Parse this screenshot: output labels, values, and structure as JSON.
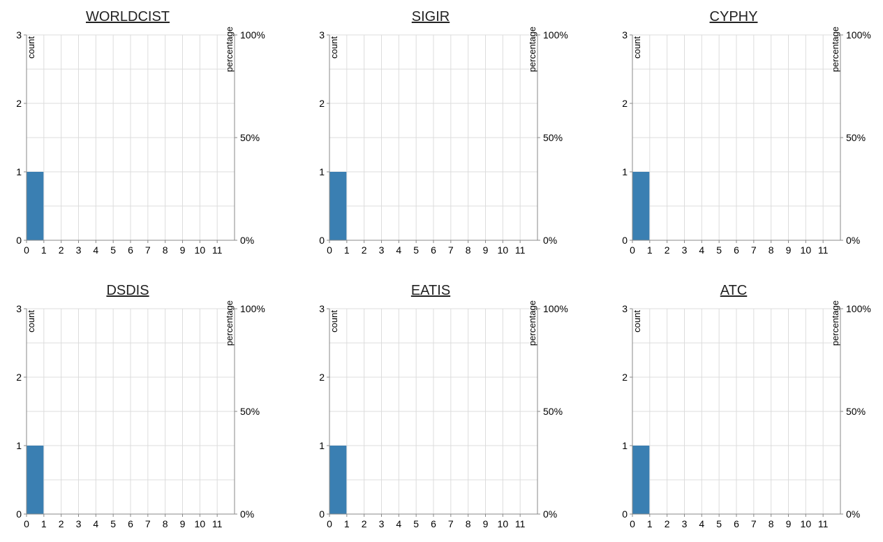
{
  "chart_data": [
    {
      "type": "bar",
      "title": "WORLDCIST",
      "ylabel": "count",
      "y2label": "percentage",
      "x_ticks": [
        "0",
        "1",
        "2",
        "3",
        "4",
        "5",
        "6",
        "7",
        "8",
        "9",
        "10",
        "11"
      ],
      "y_ticks": [
        "0",
        "1",
        "2",
        "3"
      ],
      "y2_ticks": [
        "0%",
        "50%",
        "100%"
      ],
      "xlim": [
        0,
        12
      ],
      "ylim": [
        0,
        3
      ],
      "grid": true,
      "bars": [
        {
          "x_start": 0,
          "x_end": 1,
          "value": 1
        }
      ],
      "bar_color": "#3a7fb2"
    },
    {
      "type": "bar",
      "title": "SIGIR",
      "ylabel": "count",
      "y2label": "percentage",
      "x_ticks": [
        "0",
        "1",
        "2",
        "3",
        "4",
        "5",
        "6",
        "7",
        "8",
        "9",
        "10",
        "11"
      ],
      "y_ticks": [
        "0",
        "1",
        "2",
        "3"
      ],
      "y2_ticks": [
        "0%",
        "50%",
        "100%"
      ],
      "xlim": [
        0,
        12
      ],
      "ylim": [
        0,
        3
      ],
      "grid": true,
      "bars": [
        {
          "x_start": 0,
          "x_end": 1,
          "value": 1
        }
      ],
      "bar_color": "#3a7fb2"
    },
    {
      "type": "bar",
      "title": "CYPHY",
      "ylabel": "count",
      "y2label": "percentage",
      "x_ticks": [
        "0",
        "1",
        "2",
        "3",
        "4",
        "5",
        "6",
        "7",
        "8",
        "9",
        "10",
        "11"
      ],
      "y_ticks": [
        "0",
        "1",
        "2",
        "3"
      ],
      "y2_ticks": [
        "0%",
        "50%",
        "100%"
      ],
      "xlim": [
        0,
        12
      ],
      "ylim": [
        0,
        3
      ],
      "grid": true,
      "bars": [
        {
          "x_start": 0,
          "x_end": 1,
          "value": 1
        }
      ],
      "bar_color": "#3a7fb2"
    },
    {
      "type": "bar",
      "title": "DSDIS",
      "ylabel": "count",
      "y2label": "percentage",
      "x_ticks": [
        "0",
        "1",
        "2",
        "3",
        "4",
        "5",
        "6",
        "7",
        "8",
        "9",
        "10",
        "11"
      ],
      "y_ticks": [
        "0",
        "1",
        "2",
        "3"
      ],
      "y2_ticks": [
        "0%",
        "50%",
        "100%"
      ],
      "xlim": [
        0,
        12
      ],
      "ylim": [
        0,
        3
      ],
      "grid": true,
      "bars": [
        {
          "x_start": 0,
          "x_end": 1,
          "value": 1
        }
      ],
      "bar_color": "#3a7fb2"
    },
    {
      "type": "bar",
      "title": "EATIS",
      "ylabel": "count",
      "y2label": "percentage",
      "x_ticks": [
        "0",
        "1",
        "2",
        "3",
        "4",
        "5",
        "6",
        "7",
        "8",
        "9",
        "10",
        "11"
      ],
      "y_ticks": [
        "0",
        "1",
        "2",
        "3"
      ],
      "y2_ticks": [
        "0%",
        "50%",
        "100%"
      ],
      "xlim": [
        0,
        12
      ],
      "ylim": [
        0,
        3
      ],
      "grid": true,
      "bars": [
        {
          "x_start": 0,
          "x_end": 1,
          "value": 1
        }
      ],
      "bar_color": "#3a7fb2"
    },
    {
      "type": "bar",
      "title": "ATC",
      "ylabel": "count",
      "y2label": "percentage",
      "x_ticks": [
        "0",
        "1",
        "2",
        "3",
        "4",
        "5",
        "6",
        "7",
        "8",
        "9",
        "10",
        "11"
      ],
      "y_ticks": [
        "0",
        "1",
        "2",
        "3"
      ],
      "y2_ticks": [
        "0%",
        "50%",
        "100%"
      ],
      "xlim": [
        0,
        12
      ],
      "ylim": [
        0,
        3
      ],
      "grid": true,
      "bars": [
        {
          "x_start": 0,
          "x_end": 1,
          "value": 1
        }
      ],
      "bar_color": "#3a7fb2"
    }
  ]
}
